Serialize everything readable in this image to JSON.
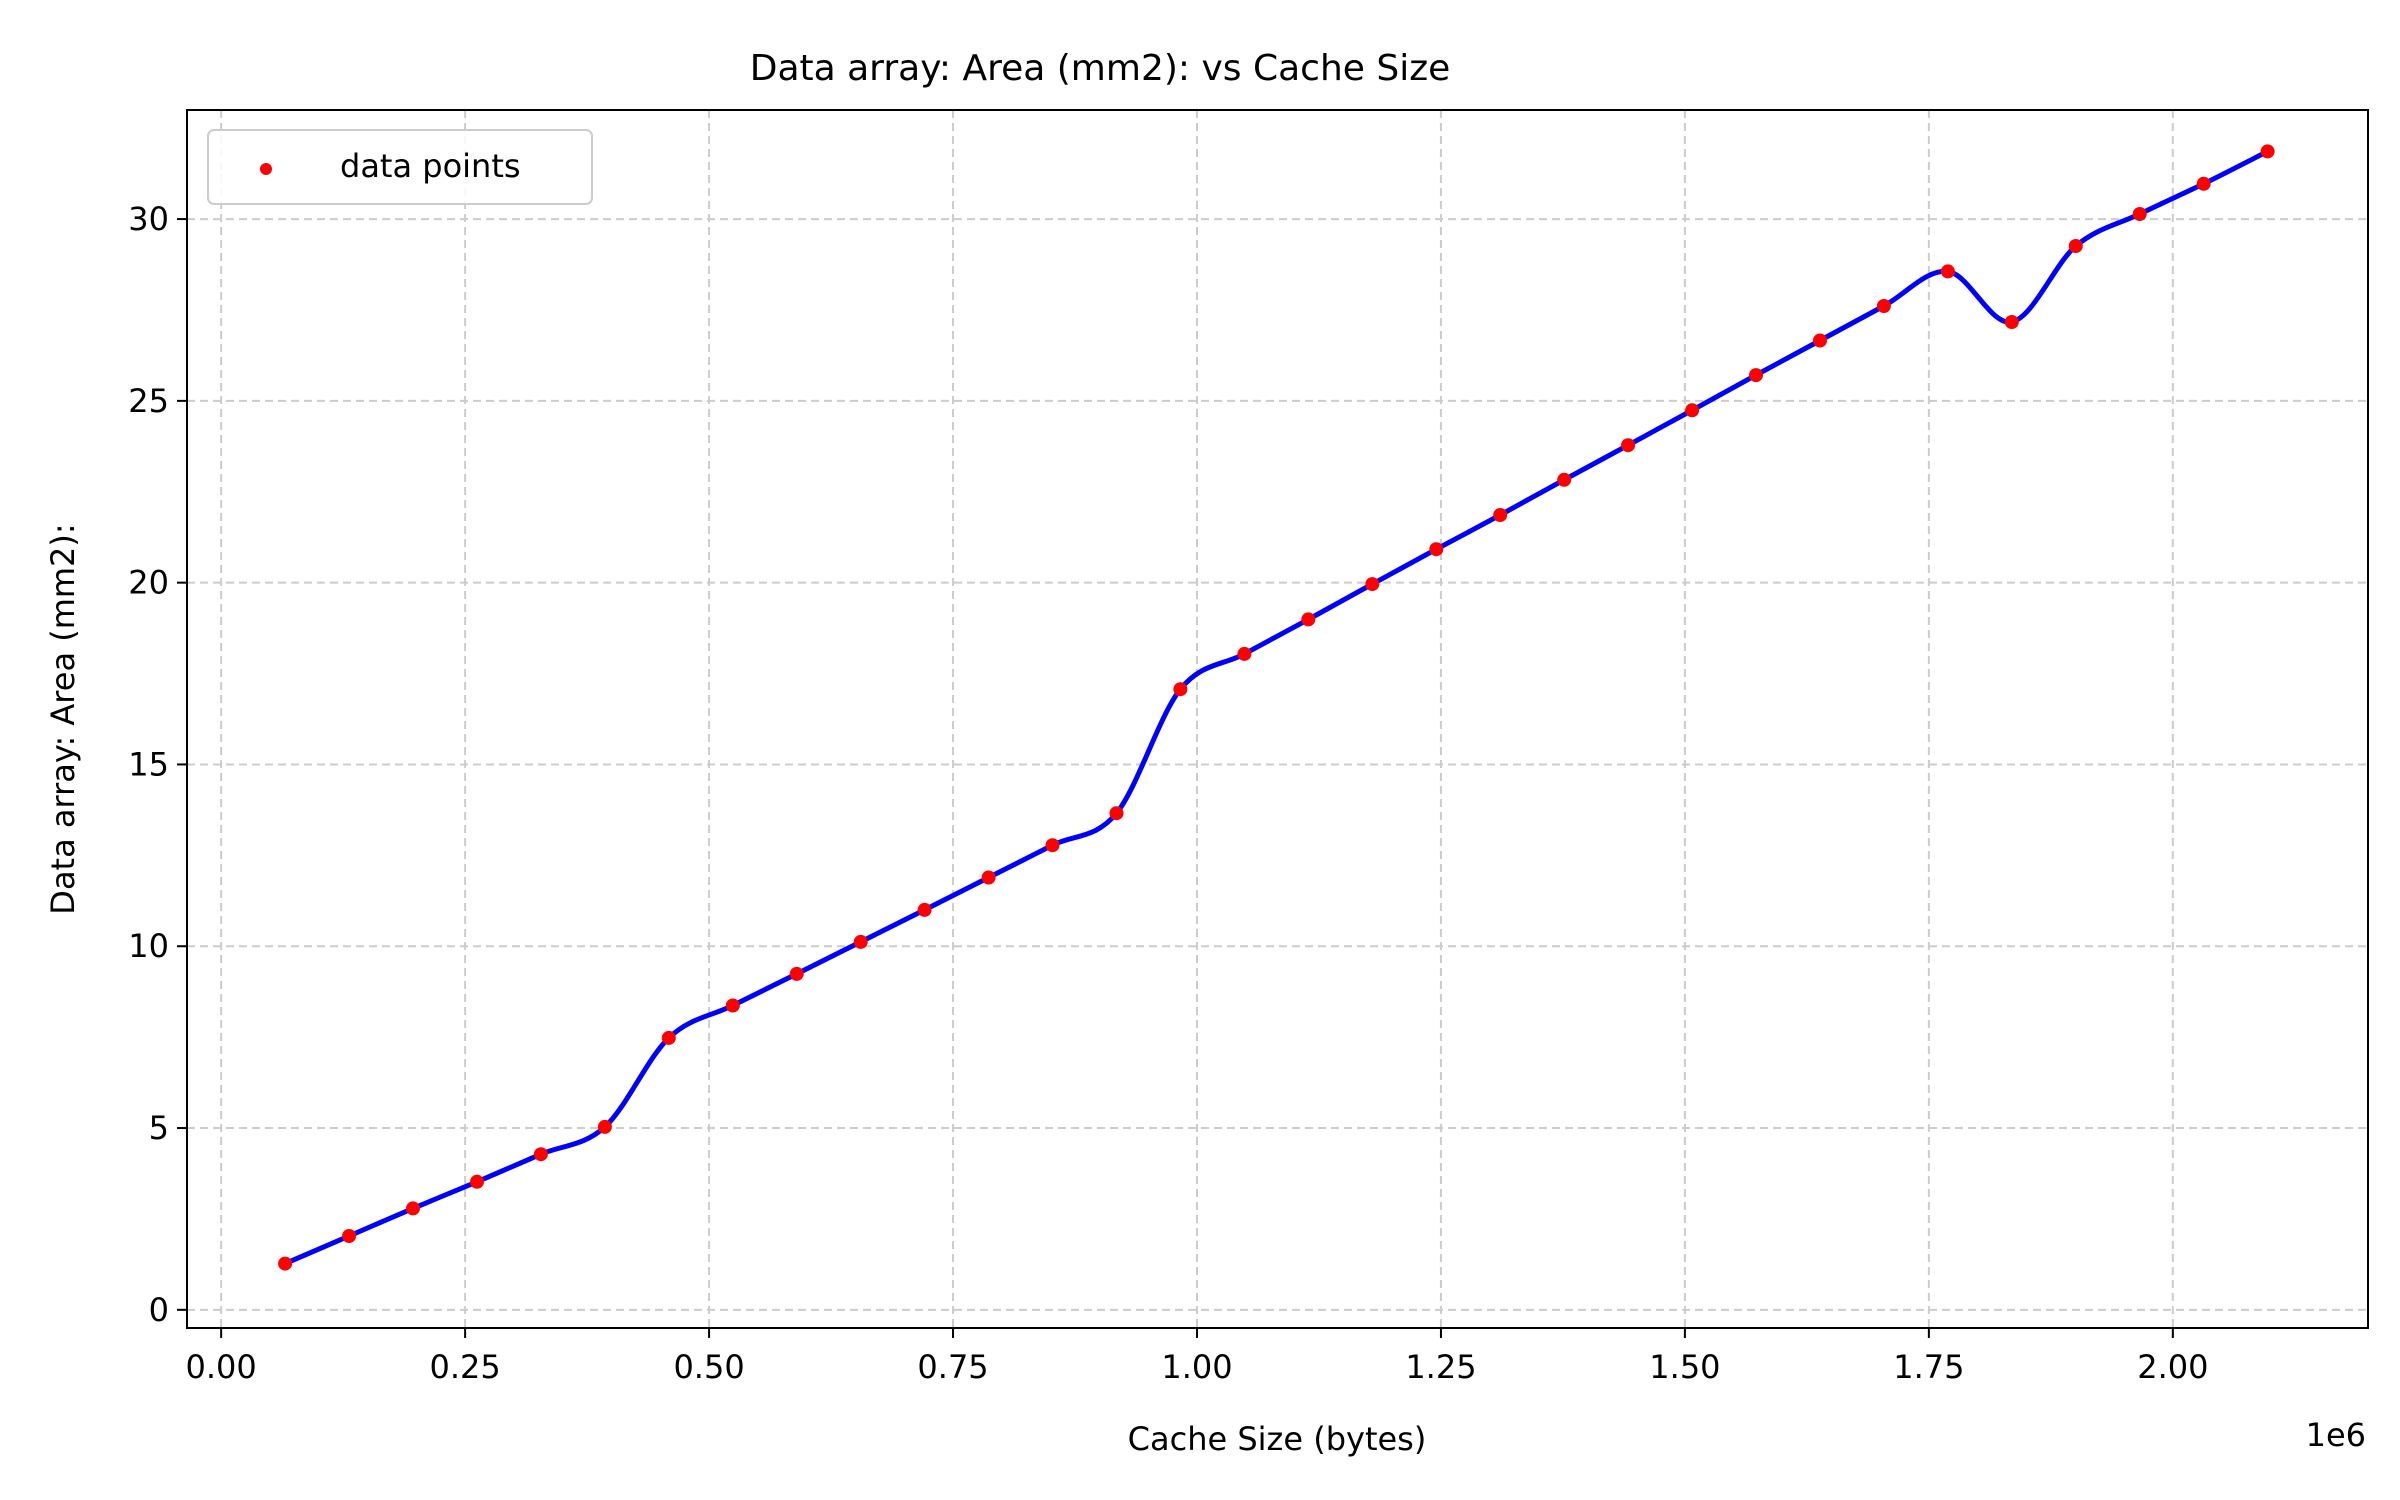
{
  "chart_data": {
    "type": "scatter",
    "title": "Data array: Area (mm2): vs Cache Size",
    "xlabel": "Cache Size (bytes)",
    "ylabel": "Data array: Area (mm2):",
    "x_offset_label": "1e6",
    "xlim": [
      -35000,
      2200000
    ],
    "ylim": [
      -0.5,
      33
    ],
    "x_ticks": [
      0,
      250000,
      500000,
      750000,
      1000000,
      1250000,
      1500000,
      1750000,
      2000000
    ],
    "x_tick_labels": [
      "0.00",
      "0.25",
      "0.50",
      "0.75",
      "1.00",
      "1.25",
      "1.50",
      "1.75",
      "2.00"
    ],
    "y_ticks": [
      0,
      5,
      10,
      15,
      20,
      25,
      30
    ],
    "y_tick_labels": [
      "0",
      "5",
      "10",
      "15",
      "20",
      "25",
      "30"
    ],
    "grid": true,
    "legend_position": "top-left",
    "series": [
      {
        "name": "data points",
        "style": "scatter",
        "color": "#ff0000",
        "x": [
          65536,
          131072,
          196608,
          262144,
          327680,
          393216,
          458752,
          524288,
          589824,
          655360,
          720896,
          786432,
          851968,
          917504,
          983040,
          1048576,
          1114112,
          1179648,
          1245184,
          1310720,
          1376256,
          1441792,
          1507328,
          1572864,
          1638400,
          1703936,
          1769472,
          1835008,
          1900544,
          1966080,
          2031616,
          2097152
        ],
        "y": [
          1.27,
          2.03,
          2.79,
          3.52,
          4.28,
          5.03,
          7.48,
          8.37,
          9.24,
          10.12,
          11.0,
          11.89,
          12.78,
          13.66,
          17.07,
          18.04,
          18.99,
          19.96,
          20.92,
          21.86,
          22.83,
          23.78,
          24.74,
          25.71,
          26.66,
          27.61,
          28.56,
          27.17,
          29.26,
          30.14,
          30.97,
          31.86
        ]
      },
      {
        "style": "line",
        "color": "#0000ff"
      }
    ]
  }
}
